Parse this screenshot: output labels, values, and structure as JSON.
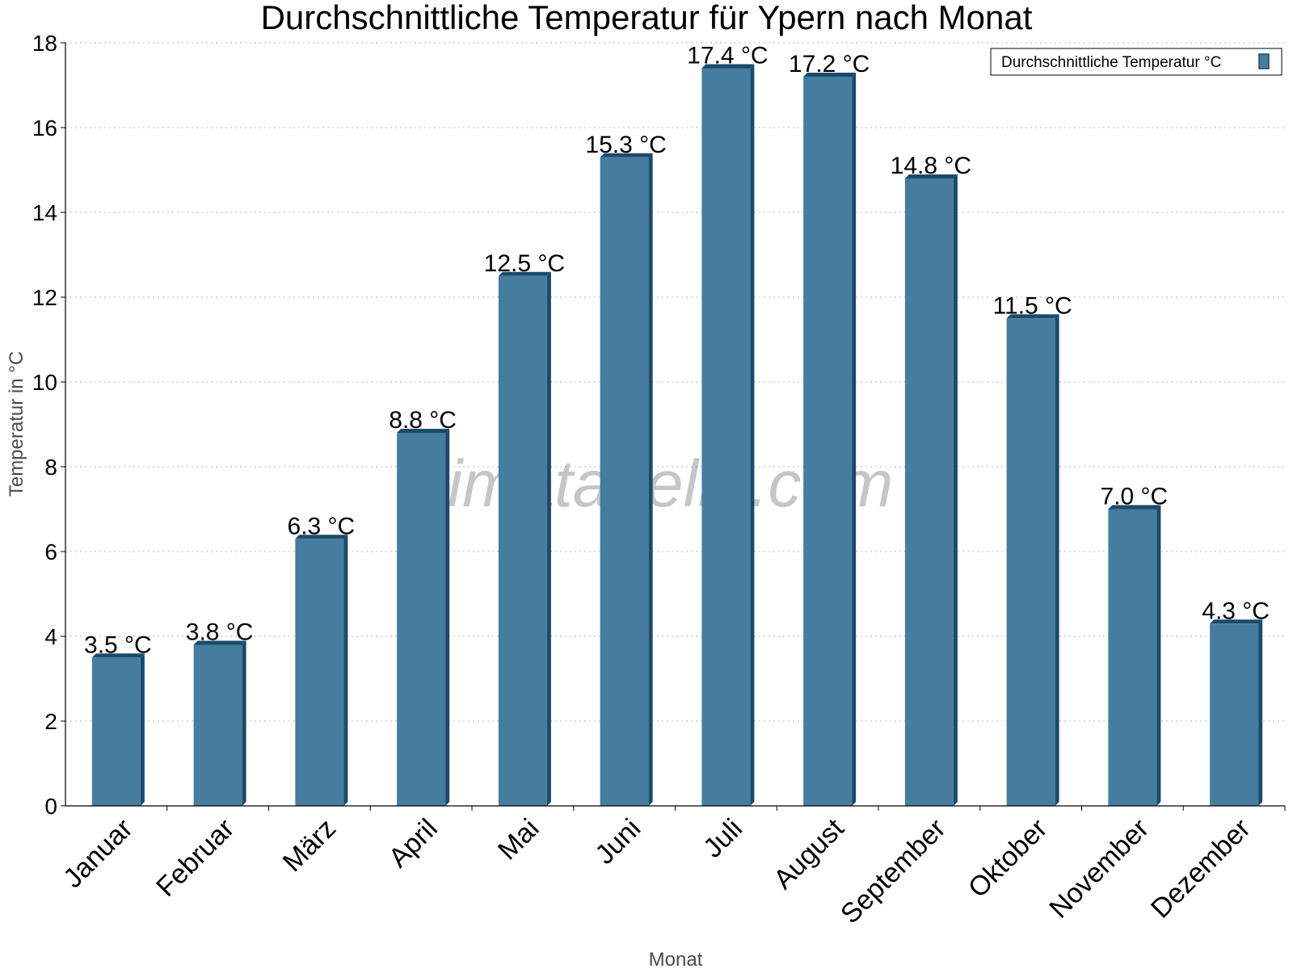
{
  "chart_data": {
    "type": "bar",
    "title": "Durchschnittliche Temperatur für Ypern nach Monat",
    "xlabel": "Monat",
    "ylabel": "Temperatur in °C",
    "categories": [
      "Januar",
      "Februar",
      "März",
      "April",
      "Mai",
      "Juni",
      "Juli",
      "August",
      "September",
      "Oktober",
      "November",
      "Dezember"
    ],
    "series": [
      {
        "name": "Durchschnittliche Temperatur °C",
        "values": [
          3.5,
          3.8,
          6.3,
          8.8,
          12.5,
          15.3,
          17.4,
          17.2,
          14.8,
          11.5,
          7.0,
          4.3
        ],
        "labels": [
          "3.5 °C",
          "3.8 °C",
          "6.3 °C",
          "8.8 °C",
          "12.5 °C",
          "15.3 °C",
          "17.4 °C",
          "17.2 °C",
          "14.8 °C",
          "11.5 °C",
          "7.0 °C",
          "4.3 °C"
        ],
        "color": "#467c9f",
        "edge_color": "#1b4a6b"
      }
    ],
    "ylim": [
      0,
      18
    ],
    "yticks": [
      "0",
      "2",
      "4",
      "6",
      "8",
      "10",
      "12",
      "14",
      "16",
      "18"
    ],
    "grid": true,
    "legend_position": "top-right",
    "watermark": "klimatabelle.com"
  }
}
